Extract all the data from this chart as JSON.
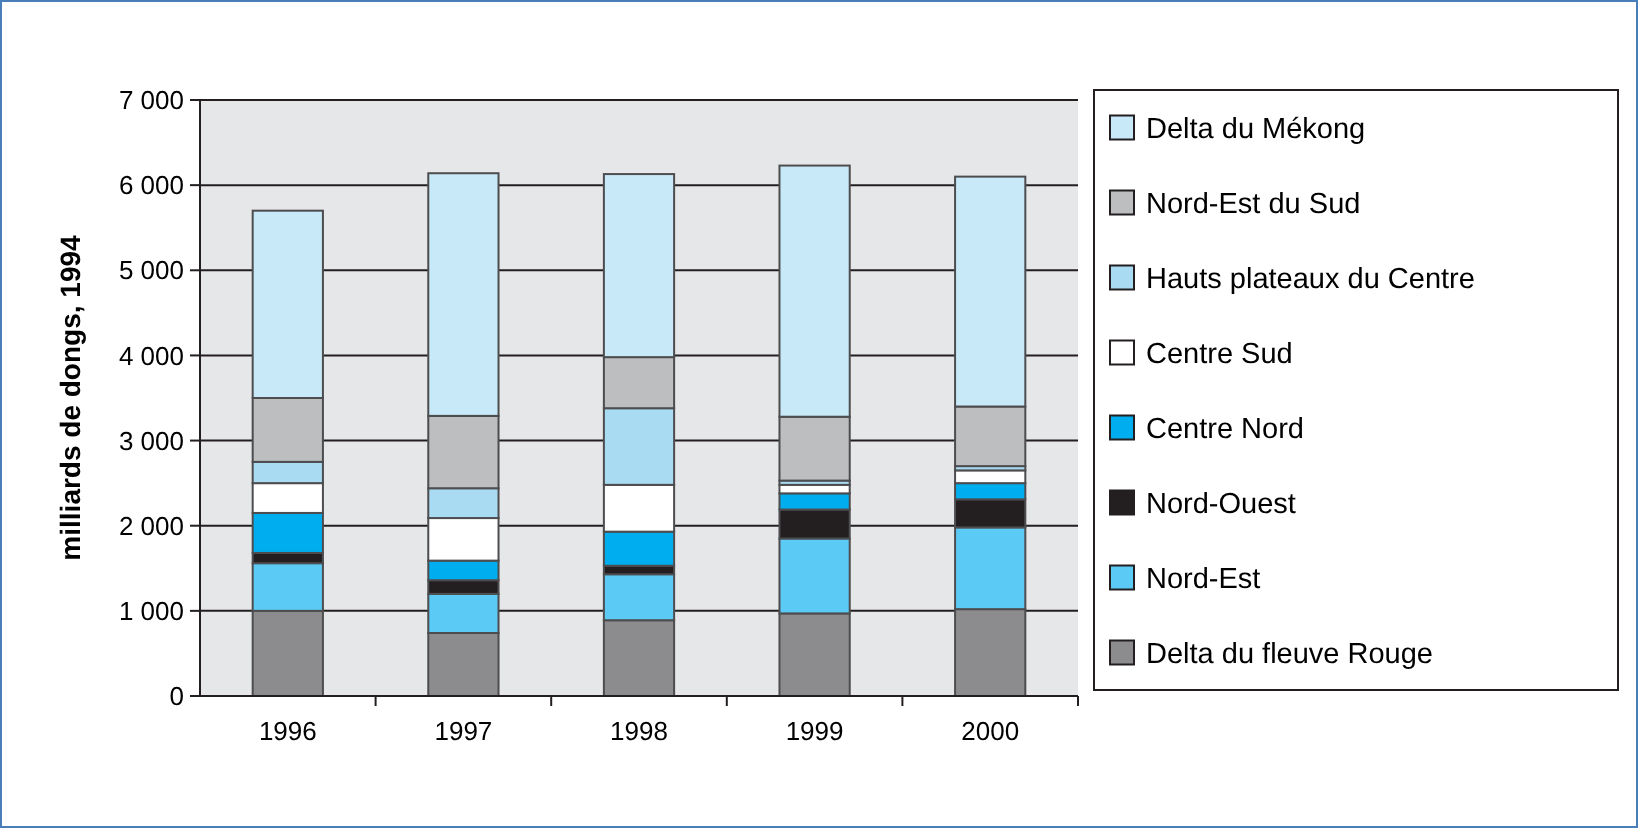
{
  "chart_data": {
    "type": "bar",
    "stacked": true,
    "ylabel": "milliards de dongs, 1994",
    "categories": [
      "1996",
      "1997",
      "1998",
      "1999",
      "2000"
    ],
    "series": [
      {
        "name": "Delta du fleuve Rouge",
        "color": "#8c8c8f",
        "values": [
          1000,
          740,
          890,
          970,
          1020
        ]
      },
      {
        "name": "Nord-Est",
        "color": "#5bcbf5",
        "values": [
          560,
          460,
          540,
          880,
          960
        ]
      },
      {
        "name": "Nord-Ouest",
        "color": "#231f20",
        "values": [
          120,
          160,
          100,
          340,
          330
        ]
      },
      {
        "name": "Centre Nord",
        "color": "#00aeef",
        "values": [
          470,
          230,
          400,
          190,
          190
        ]
      },
      {
        "name": "Centre Sud",
        "color": "#ffffff",
        "values": [
          350,
          500,
          550,
          100,
          150
        ]
      },
      {
        "name": "Hauts plateaux du Centre",
        "color": "#a9dcf2",
        "values": [
          250,
          350,
          900,
          50,
          50
        ]
      },
      {
        "name": "Nord-Est du Sud",
        "color": "#bdbec0",
        "values": [
          750,
          850,
          600,
          750,
          700
        ]
      },
      {
        "name": "Delta du Mékong",
        "color": "#c8eaf8",
        "values": [
          2200,
          2850,
          2150,
          2950,
          2700
        ]
      }
    ],
    "ylim": [
      0,
      7000
    ],
    "yticks": [
      0,
      {
        "value": 1000,
        "label": "1 000"
      },
      {
        "value": 2000,
        "label": "2 000"
      },
      {
        "value": 3000,
        "label": "3 000"
      },
      {
        "value": 4000,
        "label": "4 000"
      },
      {
        "value": 5000,
        "label": "5 000"
      },
      {
        "value": 6000,
        "label": "6 000"
      },
      {
        "value": 7000,
        "label": "7 000"
      }
    ],
    "grid": "y",
    "legend": "right"
  }
}
